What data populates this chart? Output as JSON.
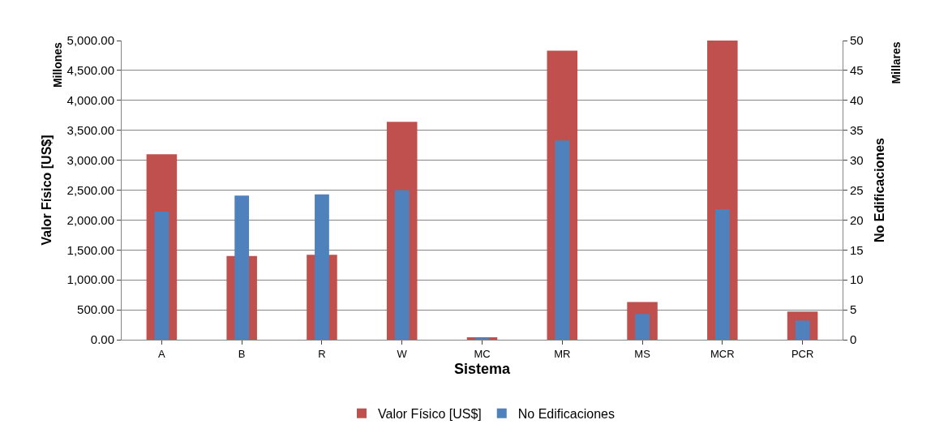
{
  "chart_data": {
    "type": "bar",
    "xlabel": "Sistema",
    "ylabel": "Valor Físico [US$]",
    "y2label": "No Edificaciones",
    "annotations": [
      "Millones",
      "Millares"
    ],
    "categories": [
      "A",
      "B",
      "R",
      "W",
      "MC",
      "MR",
      "MS",
      "MCR",
      "PCR"
    ],
    "series": [
      {
        "name": "Valor Físico [US$]",
        "color": "#c0504d",
        "values": [
          3100,
          1400,
          1420,
          3640,
          40,
          4830,
          630,
          5000,
          470
        ]
      },
      {
        "name": "No Edificaciones",
        "color": "#4f81bd",
        "axis": "y2",
        "values": [
          21.4,
          24.1,
          24.3,
          25.0,
          0.2,
          33.3,
          4.3,
          21.8,
          3.2
        ]
      }
    ],
    "ylim": [
      0,
      5000
    ],
    "yticks": [
      {
        "value": 0,
        "label": "0.00"
      },
      {
        "value": 500,
        "label": "500.00"
      },
      {
        "value": 1000,
        "label": "1,000.00"
      },
      {
        "value": 1500,
        "label": "1,500.00"
      },
      {
        "value": 2000,
        "label": "2,000.00"
      },
      {
        "value": 2500,
        "label": "2,500.00"
      },
      {
        "value": 3000,
        "label": "3,000.00"
      },
      {
        "value": 3500,
        "label": "3,500.00"
      },
      {
        "value": 4000,
        "label": "4,000.00"
      },
      {
        "value": 4500,
        "label": "4,500.00"
      },
      {
        "value": 5000,
        "label": "5,000.00"
      }
    ],
    "y2lim": [
      0,
      50
    ],
    "y2ticks": [
      0,
      5,
      10,
      15,
      20,
      25,
      30,
      35,
      40,
      45,
      50
    ],
    "grid": "y",
    "legend": "bottom"
  }
}
